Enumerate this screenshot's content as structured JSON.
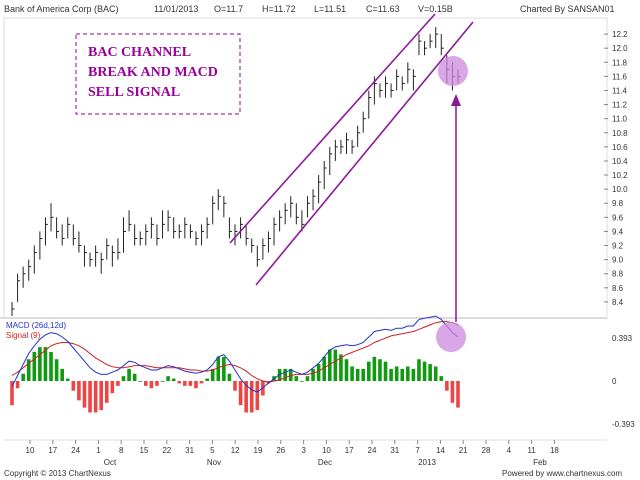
{
  "header": {
    "symbol": "Bank of America Corp (BAC)",
    "date": "11/01/2013",
    "open": "O=11.7",
    "high": "H=11.72",
    "low": "L=11.51",
    "close": "C=11.63",
    "volume": "V=0.15B",
    "charted_by": "Charted By SANSAN01"
  },
  "annotation": {
    "lines": [
      "BAC CHANNEL",
      "BREAK AND MACD",
      "SELL SIGNAL"
    ],
    "color": "#990099"
  },
  "footer": {
    "copyright": "Copyright © 2013 ChartNexus",
    "powered": "Powered by www.chartnexus.com"
  },
  "x_axis": {
    "ticks": [
      "10",
      "17",
      "24",
      "1",
      "8",
      "15",
      "22",
      "31",
      "5",
      "12",
      "19",
      "26",
      "3",
      "10",
      "17",
      "24",
      "31",
      "7",
      "14",
      "21",
      "28",
      "4",
      "11",
      "18"
    ],
    "months": [
      "Oct",
      "Nov",
      "Dec",
      "2013",
      "Feb"
    ]
  },
  "colors": {
    "price_bar": "#222222",
    "channel": "#8B1A9B",
    "macd_line": "#2233cc",
    "signal_line": "#cc2222",
    "hist_pos": "#119911",
    "hist_neg": "#ee4444",
    "highlight": "#cc88dd"
  },
  "chart_data": [
    {
      "type": "ohlc",
      "series_name": "Bank of America Corp (BAC)",
      "y_ticks": [
        8.4,
        8.6,
        8.8,
        9.0,
        9.2,
        9.4,
        9.6,
        9.8,
        10.0,
        10.2,
        10.4,
        10.6,
        10.8,
        11.0,
        11.2,
        11.4,
        11.6,
        11.8,
        12.0,
        12.2
      ],
      "ylim": [
        8.2,
        12.4
      ],
      "bars": [
        [
          8.4,
          8.2,
          8.3
        ],
        [
          8.8,
          8.4,
          8.7
        ],
        [
          8.9,
          8.6,
          8.8
        ],
        [
          9.0,
          8.7,
          8.9
        ],
        [
          9.2,
          8.8,
          9.1
        ],
        [
          9.4,
          9.0,
          9.3
        ],
        [
          9.6,
          9.2,
          9.5
        ],
        [
          9.8,
          9.4,
          9.6
        ],
        [
          9.6,
          9.3,
          9.4
        ],
        [
          9.5,
          9.2,
          9.3
        ],
        [
          9.6,
          9.3,
          9.5
        ],
        [
          9.5,
          9.2,
          9.3
        ],
        [
          9.4,
          9.1,
          9.2
        ],
        [
          9.2,
          8.9,
          9.1
        ],
        [
          9.1,
          8.9,
          9.0
        ],
        [
          9.2,
          8.9,
          9.1
        ],
        [
          9.1,
          8.8,
          9.0
        ],
        [
          9.3,
          9.0,
          9.2
        ],
        [
          9.2,
          8.9,
          9.1
        ],
        [
          9.3,
          9.0,
          9.1
        ],
        [
          9.6,
          9.1,
          9.4
        ],
        [
          9.7,
          9.4,
          9.5
        ],
        [
          9.5,
          9.2,
          9.3
        ],
        [
          9.4,
          9.2,
          9.3
        ],
        [
          9.5,
          9.2,
          9.4
        ],
        [
          9.6,
          9.3,
          9.5
        ],
        [
          9.5,
          9.2,
          9.3
        ],
        [
          9.7,
          9.3,
          9.5
        ],
        [
          9.7,
          9.4,
          9.6
        ],
        [
          9.6,
          9.3,
          9.4
        ],
        [
          9.5,
          9.3,
          9.4
        ],
        [
          9.6,
          9.3,
          9.5
        ],
        [
          9.5,
          9.3,
          9.4
        ],
        [
          9.4,
          9.2,
          9.3
        ],
        [
          9.5,
          9.2,
          9.4
        ],
        [
          9.6,
          9.3,
          9.5
        ],
        [
          9.9,
          9.5,
          9.8
        ],
        [
          10.0,
          9.7,
          9.9
        ],
        [
          9.9,
          9.6,
          9.8
        ],
        [
          9.6,
          9.3,
          9.4
        ],
        [
          9.5,
          9.2,
          9.4
        ],
        [
          9.6,
          9.3,
          9.5
        ],
        [
          9.5,
          9.2,
          9.3
        ],
        [
          9.3,
          9.1,
          9.2
        ],
        [
          9.2,
          8.9,
          9.0
        ],
        [
          9.3,
          9.0,
          9.2
        ],
        [
          9.4,
          9.1,
          9.3
        ],
        [
          9.6,
          9.2,
          9.5
        ],
        [
          9.7,
          9.4,
          9.6
        ],
        [
          9.8,
          9.5,
          9.7
        ],
        [
          9.9,
          9.6,
          9.8
        ],
        [
          9.8,
          9.5,
          9.6
        ],
        [
          9.7,
          9.4,
          9.5
        ],
        [
          9.9,
          9.6,
          9.8
        ],
        [
          10.0,
          9.7,
          9.9
        ],
        [
          10.2,
          9.8,
          10.1
        ],
        [
          10.4,
          10.0,
          10.3
        ],
        [
          10.6,
          10.2,
          10.5
        ],
        [
          10.7,
          10.4,
          10.6
        ],
        [
          10.7,
          10.5,
          10.6
        ],
        [
          10.8,
          10.5,
          10.7
        ],
        [
          10.7,
          10.5,
          10.6
        ],
        [
          10.9,
          10.6,
          10.8
        ],
        [
          11.1,
          10.8,
          11.0
        ],
        [
          11.4,
          11.0,
          11.3
        ],
        [
          11.6,
          11.2,
          11.5
        ],
        [
          11.5,
          11.3,
          11.4
        ],
        [
          11.6,
          11.3,
          11.5
        ],
        [
          11.5,
          11.3,
          11.4
        ],
        [
          11.7,
          11.4,
          11.6
        ],
        [
          11.6,
          11.4,
          11.5
        ],
        [
          11.8,
          11.5,
          11.7
        ],
        [
          11.7,
          11.4,
          11.6
        ],
        [
          12.2,
          11.9,
          12.1
        ],
        [
          12.1,
          11.9,
          12.0
        ],
        [
          12.2,
          12.0,
          12.1
        ],
        [
          12.3,
          12.0,
          12.2
        ],
        [
          12.2,
          11.9,
          12.0
        ],
        [
          11.9,
          11.5,
          11.7
        ],
        [
          11.8,
          11.4,
          11.6
        ],
        [
          11.7,
          11.5,
          11.6
        ]
      ]
    },
    {
      "type": "line",
      "title": "MACD (26d,12d)",
      "signal_title": "Signal (9)",
      "y_ticks": [
        0.393,
        0,
        -0.393
      ],
      "ylim": [
        -0.5,
        0.5
      ],
      "macd": [
        -0.05,
        0.05,
        0.15,
        0.25,
        0.32,
        0.38,
        0.42,
        0.44,
        0.43,
        0.4,
        0.36,
        0.3,
        0.24,
        0.18,
        0.12,
        0.08,
        0.06,
        0.06,
        0.08,
        0.1,
        0.14,
        0.18,
        0.17,
        0.14,
        0.12,
        0.1,
        0.1,
        0.12,
        0.14,
        0.13,
        0.11,
        0.09,
        0.08,
        0.07,
        0.08,
        0.1,
        0.15,
        0.22,
        0.24,
        0.18,
        0.1,
        0.02,
        -0.04,
        -0.08,
        -0.1,
        -0.06,
        -0.02,
        0.02,
        0.06,
        0.08,
        0.1,
        0.08,
        0.06,
        0.08,
        0.12,
        0.16,
        0.22,
        0.28,
        0.31,
        0.32,
        0.33,
        0.32,
        0.33,
        0.35,
        0.4,
        0.45,
        0.46,
        0.47,
        0.46,
        0.48,
        0.48,
        0.5,
        0.5,
        0.56,
        0.57,
        0.58,
        0.59,
        0.56,
        0.5,
        0.44,
        0.4
      ],
      "signal": [
        0.05,
        0.08,
        0.12,
        0.16,
        0.2,
        0.24,
        0.28,
        0.32,
        0.34,
        0.35,
        0.35,
        0.34,
        0.32,
        0.29,
        0.25,
        0.21,
        0.18,
        0.15,
        0.13,
        0.12,
        0.12,
        0.13,
        0.14,
        0.14,
        0.14,
        0.13,
        0.12,
        0.12,
        0.12,
        0.12,
        0.12,
        0.11,
        0.1,
        0.1,
        0.09,
        0.09,
        0.1,
        0.12,
        0.14,
        0.15,
        0.14,
        0.12,
        0.09,
        0.05,
        0.02,
        0.0,
        -0.01,
        0.0,
        0.01,
        0.03,
        0.05,
        0.06,
        0.06,
        0.06,
        0.07,
        0.09,
        0.12,
        0.15,
        0.18,
        0.21,
        0.24,
        0.26,
        0.28,
        0.3,
        0.32,
        0.35,
        0.37,
        0.39,
        0.41,
        0.42,
        0.43,
        0.44,
        0.45,
        0.47,
        0.49,
        0.51,
        0.53,
        0.54,
        0.54,
        0.53,
        0.51
      ]
    }
  ]
}
